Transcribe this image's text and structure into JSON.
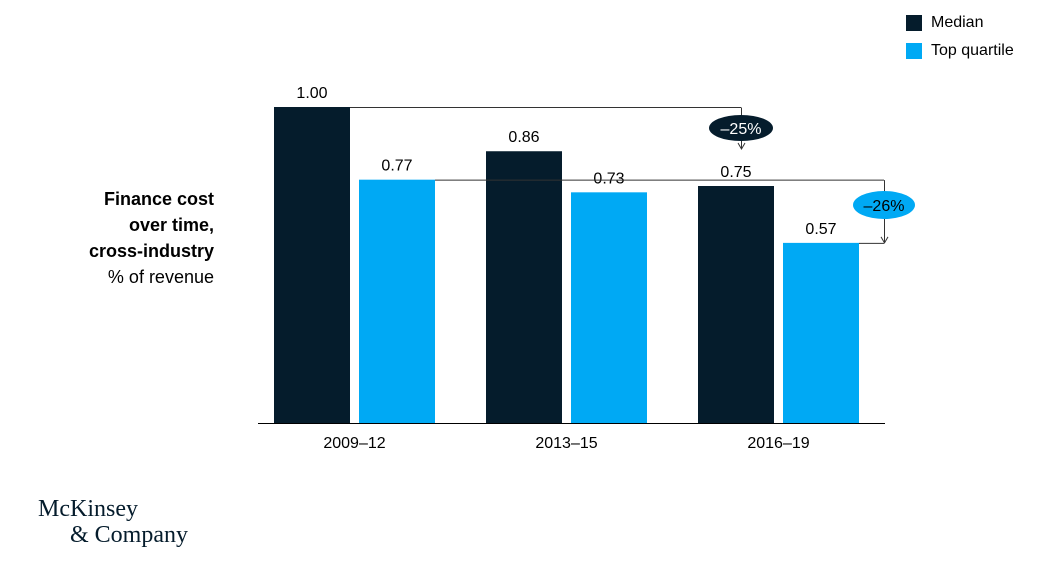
{
  "title": {
    "line1": "Finance cost",
    "line2": "over time,",
    "line3": "cross-industry",
    "unit": "% of revenue"
  },
  "logo": {
    "line1": "McKinsey",
    "line2": "& Company"
  },
  "colors": {
    "median": "#051c2c",
    "top_quartile": "#00a9f4",
    "axis": "#000000",
    "connector": "#333333"
  },
  "chart_data": {
    "type": "bar",
    "categories": [
      "2009–12",
      "2013–15",
      "2016–19"
    ],
    "series": [
      {
        "name": "Median",
        "values": [
          1.0,
          0.86,
          0.75
        ],
        "labels": [
          "1.00",
          "0.86",
          "0.75"
        ]
      },
      {
        "name": "Top quartile",
        "values": [
          0.77,
          0.73,
          0.57
        ],
        "labels": [
          "0.77",
          "0.73",
          "0.57"
        ]
      }
    ],
    "ylim": [
      0,
      1.0
    ],
    "legend": "top-right",
    "grid": false,
    "annotations": [
      {
        "text": "–25%",
        "from_series": "Median",
        "from_category": "2009–12",
        "to_series": "Median",
        "to_category": "2016–19"
      },
      {
        "text": "–26%",
        "from_series": "Top quartile",
        "from_category": "2009–12",
        "to_series": "Top quartile",
        "to_category": "2016–19"
      }
    ]
  }
}
